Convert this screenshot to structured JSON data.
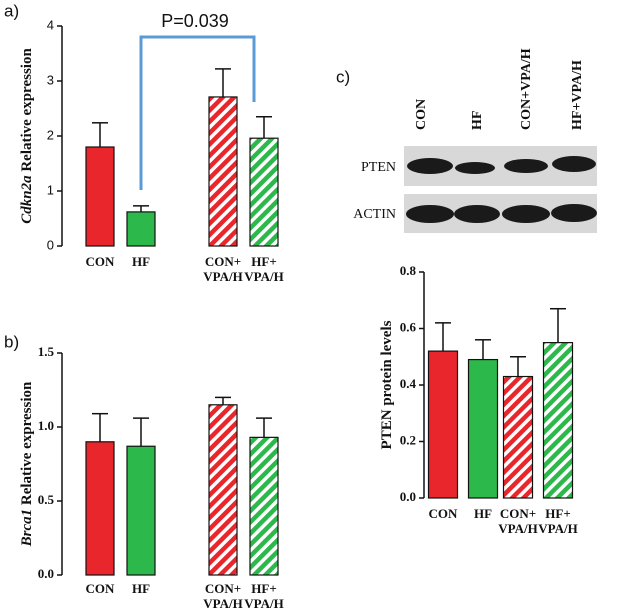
{
  "chart_data": [
    {
      "type": "bar",
      "label": "a)",
      "ylabel": {
        "italic": "Cdkn2a",
        "rest": "Relative expression"
      },
      "annotation": "P=0.039",
      "categories": [
        [
          "CON"
        ],
        [
          "HF"
        ],
        [
          "CON+",
          "VPA/H"
        ],
        [
          "HF+",
          "VPA/H"
        ]
      ],
      "values": [
        1.8,
        0.62,
        2.71,
        1.96
      ],
      "errors": [
        0.44,
        0.11,
        0.51,
        0.39
      ],
      "colors": [
        "#e8262b",
        "#2db84b",
        "#e8262b",
        "#2db84b"
      ],
      "hatch": [
        false,
        false,
        true,
        true
      ],
      "ylim": [
        0,
        4
      ],
      "yticks": [
        0,
        1,
        2,
        3,
        4
      ]
    },
    {
      "type": "bar",
      "label": "b)",
      "ylabel": {
        "italic": "Brca1",
        "rest": "Relative expression"
      },
      "categories": [
        [
          "CON"
        ],
        [
          "HF"
        ],
        [
          "CON+",
          "VPA/H"
        ],
        [
          "HF+",
          "VPA/H"
        ]
      ],
      "values": [
        0.9,
        0.87,
        1.15,
        0.93
      ],
      "errors": [
        0.19,
        0.19,
        0.05,
        0.13
      ],
      "colors": [
        "#e8262b",
        "#2db84b",
        "#e8262b",
        "#2db84b"
      ],
      "hatch": [
        false,
        false,
        true,
        true
      ],
      "ylim": [
        0,
        1.5
      ],
      "yticks": [
        {
          "value": 0,
          "label": "0.0"
        },
        {
          "value": 0.5,
          "label": "0.5"
        },
        {
          "value": 1,
          "label": "1.0"
        },
        {
          "value": 1.5,
          "label": "1.5"
        }
      ]
    },
    {
      "type": "bar",
      "ylabel": {
        "rest": "PTEN protein levels"
      },
      "categories": [
        [
          "CON"
        ],
        [
          "HF"
        ],
        [
          "CON+",
          "VPA/H"
        ],
        [
          "HF+",
          "VPA/H"
        ]
      ],
      "values": [
        0.52,
        0.49,
        0.43,
        0.55
      ],
      "errors": [
        0.1,
        0.07,
        0.07,
        0.12
      ],
      "colors": [
        "#e8262b",
        "#2db84b",
        "#e8262b",
        "#2db84b"
      ],
      "hatch": [
        false,
        false,
        true,
        true
      ],
      "ylim": [
        0,
        0.8
      ],
      "yticks": [
        {
          "value": 0,
          "label": "0.0"
        },
        {
          "value": 0.2,
          "label": "0.2"
        },
        {
          "value": 0.4,
          "label": "0.4"
        },
        {
          "value": 0.6,
          "label": "0.6"
        },
        {
          "value": 0.8,
          "label": "0.8"
        }
      ]
    }
  ],
  "blot": {
    "label": "c)",
    "lanes": [
      "CON",
      "HF",
      "CON+VPA/H",
      "HF+VPA/H"
    ],
    "rows": [
      "PTEN",
      "ACTIN"
    ]
  }
}
